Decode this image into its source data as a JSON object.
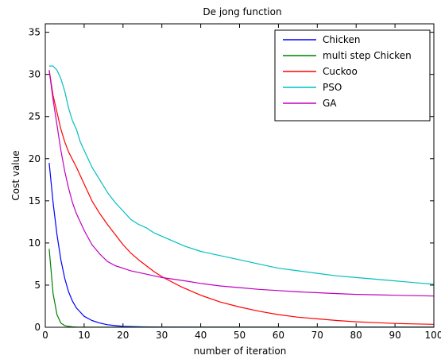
{
  "chart_data": {
    "type": "line",
    "title": "De jong function",
    "xlabel": "number of iteration",
    "ylabel": "Cost value",
    "xlim": [
      0,
      100
    ],
    "ylim": [
      0,
      36
    ],
    "xticks": [
      "0",
      "10",
      "20",
      "30",
      "40",
      "50",
      "60",
      "70",
      "80",
      "90",
      "100"
    ],
    "yticks": [
      "0",
      "5",
      "10",
      "15",
      "20",
      "25",
      "30",
      "35"
    ],
    "grid": false,
    "legend_position": "top-right",
    "series": [
      {
        "name": "Chicken",
        "color": "#0000ff",
        "x": [
          1,
          2,
          3,
          4,
          5,
          6,
          7,
          8,
          9,
          10,
          12,
          14,
          16,
          18,
          20,
          25,
          30,
          40,
          50,
          60,
          70,
          80,
          90,
          100
        ],
        "y": [
          19.5,
          14.8,
          11.0,
          8.0,
          5.8,
          4.2,
          3.1,
          2.3,
          1.8,
          1.3,
          0.8,
          0.5,
          0.3,
          0.2,
          0.1,
          0.05,
          0.03,
          0.02,
          0.02,
          0.02,
          0.02,
          0.02,
          0.02,
          0.02
        ]
      },
      {
        "name": "multi step Chicken",
        "color": "#008000",
        "x": [
          1,
          2,
          3,
          4,
          5,
          6,
          7,
          8,
          10,
          15,
          20,
          30,
          40,
          50,
          60,
          70,
          80,
          90,
          100
        ],
        "y": [
          9.3,
          4.0,
          1.5,
          0.5,
          0.2,
          0.1,
          0.05,
          0.03,
          0.02,
          0.02,
          0.02,
          0.02,
          0.02,
          0.02,
          0.02,
          0.02,
          0.02,
          0.02,
          0.02
        ]
      },
      {
        "name": "Cuckoo",
        "color": "#ff0000",
        "x": [
          1,
          2,
          3,
          4,
          5,
          6,
          8,
          10,
          12,
          14,
          16,
          18,
          20,
          22,
          24,
          26,
          28,
          30,
          35,
          40,
          45,
          50,
          55,
          60,
          65,
          70,
          75,
          80,
          85,
          90,
          95,
          100
        ],
        "y": [
          30.5,
          27.5,
          25.5,
          23.5,
          22.0,
          20.8,
          19.0,
          17.0,
          15.0,
          13.5,
          12.2,
          11.0,
          9.8,
          8.8,
          8.0,
          7.3,
          6.6,
          6.0,
          4.8,
          3.8,
          3.0,
          2.4,
          1.9,
          1.5,
          1.2,
          1.0,
          0.8,
          0.65,
          0.55,
          0.45,
          0.4,
          0.35
        ]
      },
      {
        "name": "PSO",
        "color": "#00bfbf",
        "x": [
          1,
          2,
          3,
          4,
          5,
          6,
          7,
          8,
          9,
          10,
          11,
          12,
          14,
          16,
          18,
          20,
          22,
          24,
          26,
          28,
          30,
          33,
          36,
          40,
          45,
          50,
          55,
          60,
          65,
          70,
          75,
          80,
          85,
          90,
          95,
          100
        ],
        "y": [
          31.0,
          31.0,
          30.5,
          29.5,
          28.0,
          26.0,
          24.5,
          23.5,
          22.0,
          21.0,
          20.0,
          19.0,
          17.5,
          16.0,
          14.8,
          13.8,
          12.8,
          12.2,
          11.8,
          11.2,
          10.8,
          10.2,
          9.6,
          9.0,
          8.5,
          8.0,
          7.5,
          7.0,
          6.7,
          6.4,
          6.1,
          5.9,
          5.7,
          5.5,
          5.3,
          5.1
        ]
      },
      {
        "name": "GA",
        "color": "#bf00bf",
        "x": [
          1,
          2,
          3,
          4,
          5,
          6,
          7,
          8,
          9,
          10,
          12,
          14,
          16,
          18,
          20,
          22,
          25,
          28,
          30,
          33,
          36,
          40,
          45,
          50,
          55,
          60,
          65,
          70,
          75,
          80,
          85,
          90,
          95,
          100
        ],
        "y": [
          30.5,
          27.0,
          24.0,
          21.0,
          18.5,
          16.5,
          14.8,
          13.5,
          12.5,
          11.5,
          9.8,
          8.7,
          7.8,
          7.3,
          7.0,
          6.7,
          6.4,
          6.1,
          5.9,
          5.7,
          5.5,
          5.2,
          4.9,
          4.7,
          4.5,
          4.35,
          4.2,
          4.1,
          4.0,
          3.9,
          3.85,
          3.8,
          3.75,
          3.7
        ]
      }
    ]
  }
}
